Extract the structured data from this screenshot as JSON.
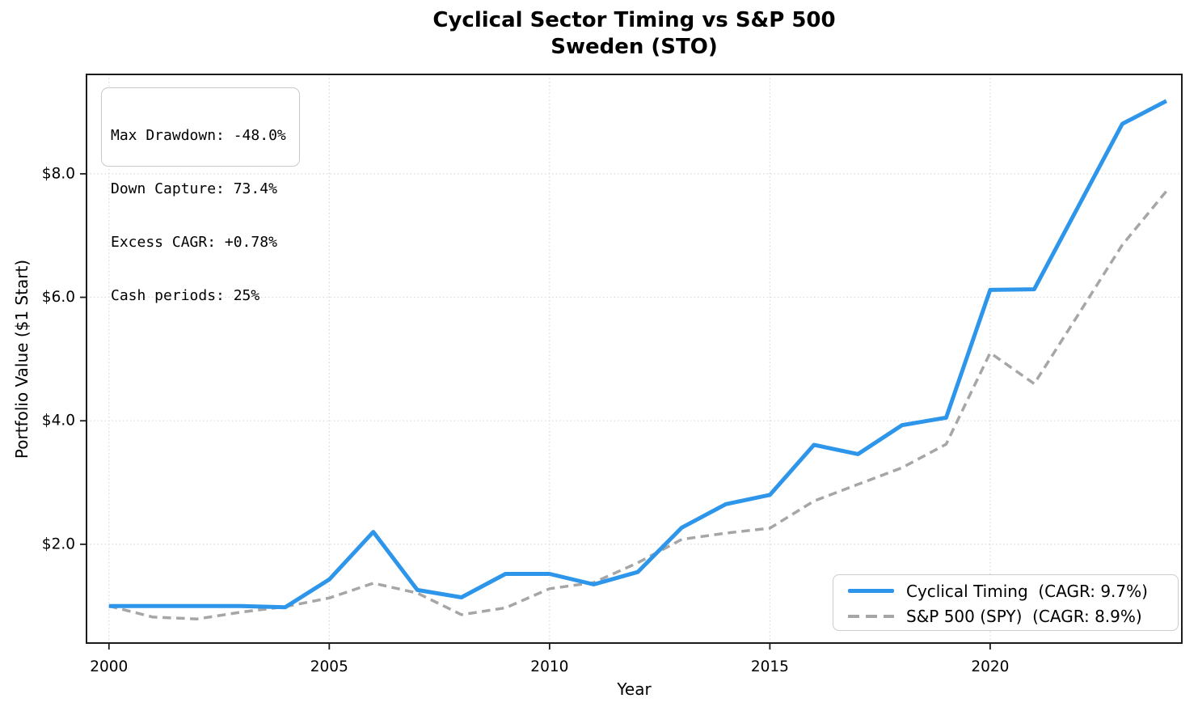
{
  "title": {
    "line1": "Cyclical Sector Timing vs S&P 500",
    "line2": "Sweden (STO)"
  },
  "stats_box": {
    "max_drawdown": "Max Drawdown: -48.0%",
    "down_capture": "Down Capture: 73.4%",
    "excess_cagr": "Excess CAGR: +0.78%",
    "cash_periods": "Cash periods: 25%"
  },
  "legend": {
    "position": "lower right",
    "entries": [
      {
        "label": "Cyclical Timing  (CAGR: 9.7%)",
        "style": "solid",
        "color": "#2e96ea"
      },
      {
        "label": "S&P 500 (SPY)  (CAGR: 8.9%)",
        "style": "dashed",
        "color": "#a6a6a6"
      }
    ]
  },
  "style": {
    "accent_blue": "#2e96ea",
    "benchmark_gray": "#a6a6a6",
    "grid_color": "#d9d9d9",
    "spine_color": "#1c1c1c",
    "text_color": "#000000"
  },
  "chart_data": {
    "type": "line",
    "title": "Cyclical Sector Timing vs S&P 500",
    "subtitle": "Sweden (STO)",
    "xlabel": "Year",
    "ylabel": "Portfolio Value ($1 Start)",
    "grid": true,
    "legend_position": "lower right",
    "xlim": [
      1999.49,
      2024.35
    ],
    "ylim": [
      0.4,
      9.61
    ],
    "xticks": [
      2000,
      2005,
      2010,
      2015,
      2020
    ],
    "xtick_labels": [
      "2000",
      "2005",
      "2010",
      "2015",
      "2020"
    ],
    "yticks": [
      2,
      4,
      6,
      8
    ],
    "ytick_labels": [
      "$2.0",
      "$4.0",
      "$6.0",
      "$8.0"
    ],
    "x": [
      2000,
      2001,
      2002,
      2003,
      2004,
      2005,
      2006,
      2007,
      2008,
      2009,
      2010,
      2011,
      2012,
      2013,
      2014,
      2015,
      2016,
      2017,
      2018,
      2019,
      2020,
      2021,
      2022,
      2023,
      2024
    ],
    "series": [
      {
        "name": "S&P 500 (SPY)",
        "cagr": "8.9%",
        "color": "#a6a6a6",
        "dash": "10.5 6.5",
        "width": 3.5,
        "values": [
          1.0,
          0.82,
          0.79,
          0.9,
          0.99,
          1.13,
          1.37,
          1.21,
          0.86,
          0.97,
          1.28,
          1.38,
          1.7,
          2.08,
          2.18,
          2.26,
          2.7,
          2.97,
          3.24,
          3.62,
          5.1,
          4.6,
          5.72,
          6.85,
          7.72
        ]
      },
      {
        "name": "Cyclical Timing",
        "cagr": "9.7%",
        "color": "#2e96ea",
        "dash": "",
        "width": 5,
        "values": [
          1.0,
          1.0,
          1.0,
          1.0,
          0.98,
          1.43,
          2.2,
          1.26,
          1.14,
          1.52,
          1.52,
          1.35,
          1.55,
          2.27,
          2.65,
          2.8,
          3.61,
          3.46,
          3.93,
          4.05,
          6.12,
          6.13,
          7.47,
          8.81,
          9.18
        ]
      }
    ]
  }
}
